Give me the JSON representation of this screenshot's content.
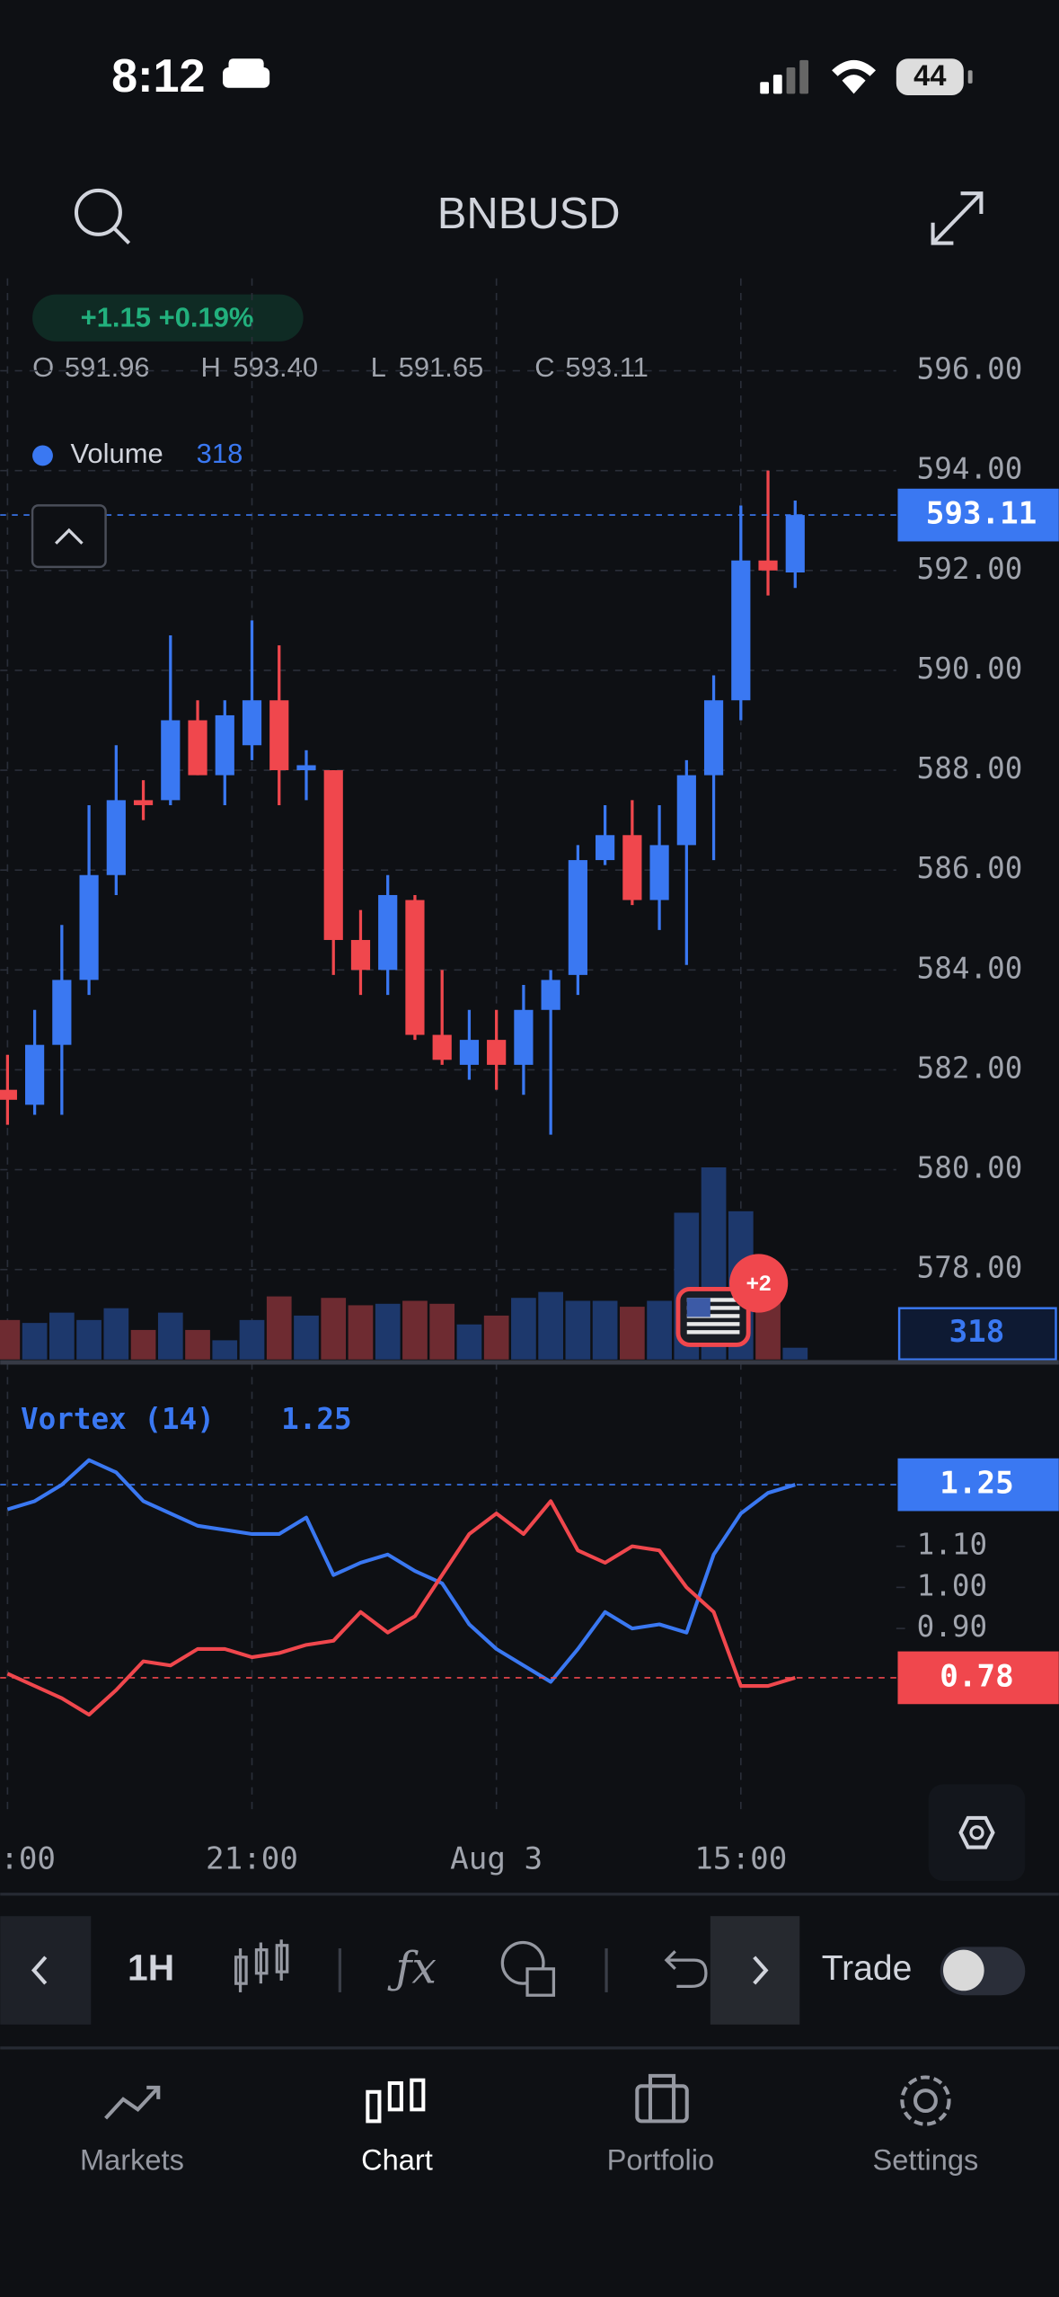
{
  "status_bar": {
    "time": "8:12",
    "battery": "44"
  },
  "header": {
    "symbol": "BNBUSD"
  },
  "chart_data": {
    "type": "candlestick",
    "change": "+1.15 +0.19%",
    "ohlc_legend": [
      {
        "label": "O",
        "value": "591.96"
      },
      {
        "label": "H",
        "value": "593.40"
      },
      {
        "label": "L",
        "value": "591.65"
      },
      {
        "label": "C",
        "value": "593.11"
      }
    ],
    "categories": [
      ":00",
      null,
      null,
      null,
      null,
      null,
      null,
      null,
      null,
      "21:00",
      null,
      null,
      null,
      null,
      null,
      null,
      null,
      null,
      "Aug 3",
      null,
      null,
      null,
      null,
      null,
      null,
      null,
      null,
      "15:00",
      null,
      null
    ],
    "open": [
      581.6,
      581.3,
      582.5,
      583.8,
      585.9,
      587.4,
      587.4,
      589.0,
      587.9,
      588.5,
      589.4,
      588.0,
      588.0,
      584.6,
      584.0,
      585.4,
      582.7,
      582.1,
      582.6,
      582.1,
      583.2,
      583.9,
      586.2,
      586.7,
      585.4,
      586.5,
      587.9,
      589.4,
      592.2,
      591.96
    ],
    "high": [
      582.3,
      583.2,
      584.9,
      587.3,
      588.5,
      587.8,
      590.7,
      589.4,
      589.4,
      591.0,
      590.5,
      588.4,
      588.0,
      585.2,
      585.9,
      585.5,
      584.0,
      583.2,
      583.2,
      583.7,
      584.0,
      586.5,
      587.3,
      587.4,
      587.3,
      588.2,
      589.9,
      593.3,
      594.0,
      593.4
    ],
    "low": [
      580.9,
      581.1,
      581.1,
      583.5,
      585.5,
      587.0,
      587.3,
      587.9,
      587.3,
      588.2,
      587.3,
      587.4,
      583.9,
      583.5,
      583.5,
      582.6,
      582.1,
      581.8,
      581.6,
      581.5,
      580.7,
      583.5,
      586.1,
      585.3,
      584.8,
      584.1,
      586.2,
      589.0,
      591.5,
      591.65
    ],
    "close": [
      581.4,
      582.5,
      583.8,
      585.9,
      587.4,
      587.3,
      589.0,
      587.9,
      589.1,
      589.4,
      588.0,
      588.1,
      584.6,
      584.0,
      585.5,
      582.7,
      582.2,
      582.6,
      582.1,
      583.2,
      583.8,
      586.2,
      586.7,
      585.4,
      586.5,
      587.9,
      589.4,
      592.2,
      592.0,
      593.11
    ],
    "up_color": "#3a78f2",
    "down_color": "#f0474d",
    "ylim": [
      576.2,
      597.85
    ],
    "yticks": [
      {
        "value": 578,
        "label": "578.00"
      },
      {
        "value": 580,
        "label": "580.00"
      },
      {
        "value": 582,
        "label": "582.00"
      },
      {
        "value": 584,
        "label": "584.00"
      },
      {
        "value": 586,
        "label": "586.00"
      },
      {
        "value": 588,
        "label": "588.00"
      },
      {
        "value": 590,
        "label": "590.00"
      },
      {
        "value": 592,
        "label": "592.00"
      },
      {
        "value": 594,
        "label": "594.00"
      },
      {
        "value": 596,
        "label": "596.00"
      }
    ],
    "grid": true,
    "volume": {
      "name": "Volume",
      "up_color": "#1d386c",
      "down_color": "#6e2b31",
      "ylim": [
        0,
        6000
      ],
      "values": [
        1070,
        990,
        1270,
        1070,
        1390,
        800,
        1270,
        800,
        520,
        1070,
        1710,
        1190,
        1670,
        1470,
        1510,
        1590,
        1510,
        950,
        1190,
        1670,
        1830,
        1590,
        1590,
        1430,
        1590,
        3980,
        5210,
        4020,
        1590,
        318
      ]
    },
    "event_badge": "+2",
    "indicator": {
      "name": "Vortex (14)",
      "ylim": [
        0.46,
        1.53
      ],
      "yticks": [
        {
          "value": 0.9,
          "label": "0.90"
        },
        {
          "value": 1,
          "label": "1.00"
        },
        {
          "value": 1.1,
          "label": "1.10"
        }
      ],
      "series": [
        {
          "color": "#3a78f2",
          "values": [
            1.19,
            1.21,
            1.25,
            1.31,
            1.28,
            1.21,
            1.18,
            1.15,
            1.14,
            1.13,
            1.13,
            1.17,
            1.03,
            1.06,
            1.08,
            1.04,
            1.01,
            0.91,
            0.85,
            0.81,
            0.77,
            0.85,
            0.94,
            0.9,
            0.91,
            0.89,
            1.08,
            1.18,
            1.23,
            1.25
          ]
        },
        {
          "color": "#f0474d",
          "values": [
            0.79,
            0.76,
            0.73,
            0.69,
            0.75,
            0.82,
            0.81,
            0.85,
            0.85,
            0.83,
            0.84,
            0.86,
            0.87,
            0.94,
            0.89,
            0.93,
            1.03,
            1.13,
            1.18,
            1.13,
            1.21,
            1.09,
            1.06,
            1.1,
            1.09,
            1.0,
            0.94,
            0.76,
            0.76,
            0.78
          ]
        }
      ]
    }
  },
  "toolbar": {
    "interval": "1H",
    "trade": "Trade"
  },
  "tab_bar": {
    "tabs": [
      "Markets",
      "Chart",
      "Portfolio",
      "Settings"
    ]
  }
}
